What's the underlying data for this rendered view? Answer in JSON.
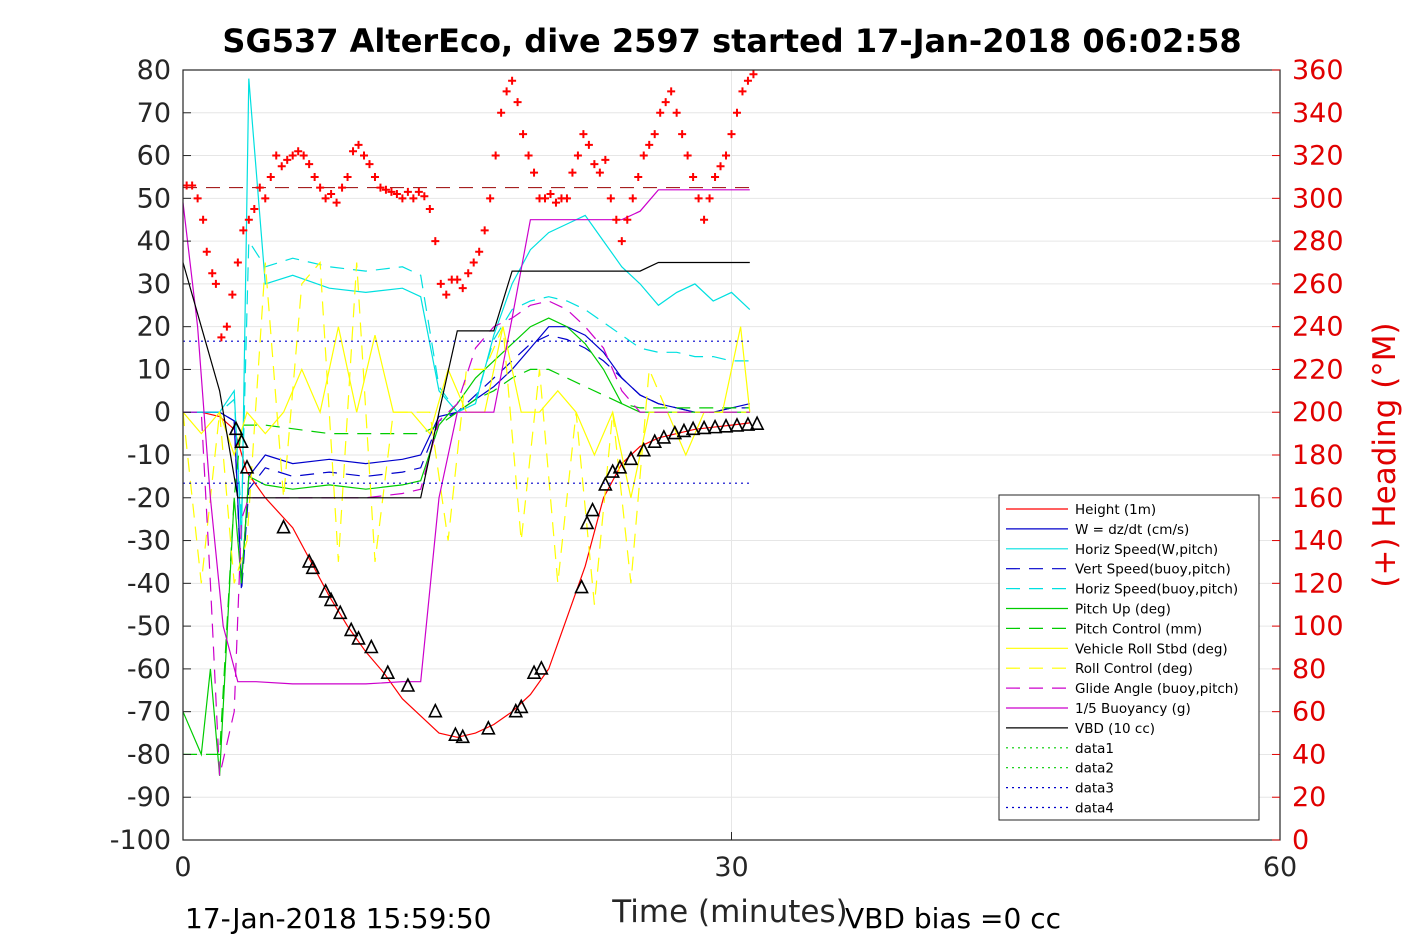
{
  "chart_data": {
    "type": "line",
    "title": "SG537 AlterEco, dive 2597 started 17-Jan-2018 06:02:58",
    "xlabel": "Time (minutes)",
    "ylabel_right": "(+) Heading (°M)",
    "xlim": [
      0,
      60
    ],
    "ylim": [
      -100,
      80
    ],
    "ylim_right": [
      0,
      360
    ],
    "x_ticks": [
      "0",
      "30",
      "60"
    ],
    "y_ticks": [
      "80",
      "70",
      "60",
      "50",
      "40",
      "30",
      "20",
      "10",
      "0",
      "-10",
      "-20",
      "-30",
      "-40",
      "-50",
      "-60",
      "-70",
      "-80",
      "-90",
      "-100"
    ],
    "y_ticks_right": [
      "360",
      "340",
      "320",
      "300",
      "280",
      "260",
      "240",
      "220",
      "200",
      "180",
      "160",
      "140",
      "120",
      "100",
      "80",
      "60",
      "40",
      "20",
      "0"
    ],
    "grid": true,
    "legend_placement": "bottom-right",
    "footer_left": "17-Jan-2018 15:59:50",
    "footer_right": "VBD bias =0 cc",
    "series": [
      {
        "name": "Height (1m)",
        "color": "#ff0000",
        "dash": "",
        "x": [
          0,
          1,
          2,
          2.8,
          3.5,
          4.5,
          6,
          7,
          8,
          9,
          10,
          11,
          12,
          13,
          14,
          15,
          16,
          17,
          18,
          19,
          20,
          21,
          22,
          23,
          24,
          25,
          26,
          27,
          28,
          29,
          30,
          31
        ],
        "y": [
          0,
          0,
          -1,
          -4,
          -14,
          -20,
          -27,
          -35,
          -43,
          -50,
          -56,
          -61,
          -67,
          -71,
          -75,
          -76,
          -75,
          -73,
          -70,
          -66,
          -60,
          -48,
          -36,
          -20,
          -12,
          -8,
          -6,
          -5,
          -4,
          -3.5,
          -3,
          -2.5
        ]
      },
      {
        "name": "W = dz/dt (cm/s)",
        "color": "#0000cc",
        "dash": "",
        "x": [
          0,
          1,
          2,
          2.8,
          3.2,
          3.6,
          4.5,
          6,
          8,
          10,
          12,
          13,
          14,
          15,
          16,
          17,
          18,
          19,
          20,
          21,
          22,
          23,
          24,
          25,
          26,
          27,
          28,
          29,
          30,
          31
        ],
        "y": [
          0,
          0,
          0,
          -2,
          -40,
          -15,
          -10,
          -12,
          -11,
          -12,
          -11,
          -10,
          -1,
          0,
          3,
          6,
          10,
          15,
          20,
          20,
          18,
          14,
          8,
          4,
          2,
          1,
          0,
          0,
          1,
          2
        ]
      },
      {
        "name": "Horiz Speed(W,pitch)",
        "color": "#00e0e0",
        "dash": "",
        "x": [
          0,
          1,
          2,
          2.8,
          3.2,
          3.6,
          4.5,
          6,
          8,
          10,
          12,
          13,
          14,
          15,
          16,
          17,
          18,
          19,
          20,
          21,
          22,
          23,
          24,
          25,
          26,
          27,
          28,
          29,
          30,
          31
        ],
        "y": [
          0,
          0,
          0,
          5,
          -30,
          78,
          30,
          32,
          29,
          28,
          29,
          27,
          5,
          0,
          2,
          18,
          30,
          38,
          42,
          44,
          46,
          40,
          34,
          30,
          25,
          28,
          30,
          26,
          28,
          24
        ]
      },
      {
        "name": "Vert Speed(buoy,pitch)",
        "color": "#0000cc",
        "dash": "14,9",
        "x": [
          0,
          1,
          2,
          2.8,
          3.2,
          3.6,
          4.5,
          6,
          8,
          10,
          12,
          13,
          14,
          15,
          16,
          17,
          18,
          19,
          20,
          21,
          22,
          23,
          24,
          25,
          26,
          27,
          28,
          29,
          30,
          31
        ],
        "y": [
          0,
          0,
          0,
          -2,
          -42,
          -18,
          -13,
          -15,
          -14,
          -15,
          -14,
          -13,
          -2,
          0,
          4,
          8,
          12,
          16,
          18,
          17,
          15,
          12,
          8,
          4,
          2,
          1,
          0,
          0,
          1,
          1
        ]
      },
      {
        "name": "Horiz Speed(buoy,pitch)",
        "color": "#00e0e0",
        "dash": "14,9",
        "x": [
          0,
          1,
          2,
          2.8,
          3.2,
          3.6,
          4.5,
          6,
          8,
          10,
          12,
          13,
          14,
          15,
          16,
          17,
          18,
          19,
          20,
          21,
          22,
          23,
          24,
          25,
          26,
          27,
          28,
          29,
          30,
          31
        ],
        "y": [
          0,
          0,
          0,
          3,
          -25,
          40,
          34,
          36,
          34,
          33,
          34,
          32,
          6,
          0,
          3,
          17,
          24,
          26,
          27,
          26,
          24,
          21,
          18,
          15,
          14,
          14,
          13,
          13,
          12,
          12
        ]
      },
      {
        "name": "Pitch Up (deg)",
        "color": "#00cc00",
        "dash": "",
        "x": [
          0,
          1,
          1.5,
          2,
          2.8,
          3.2,
          3.6,
          4.5,
          6,
          8,
          10,
          12,
          13,
          14,
          15,
          16,
          17,
          18,
          19,
          20,
          21,
          22,
          23,
          24,
          25,
          26,
          27,
          28,
          29,
          30,
          31
        ],
        "y": [
          -70,
          -80,
          -60,
          -85,
          -20,
          -40,
          -15,
          -17,
          -18,
          -17,
          -18,
          -17,
          -16,
          -3,
          2,
          8,
          12,
          16,
          20,
          22,
          20,
          16,
          10,
          2,
          0,
          0,
          0,
          0,
          0,
          0,
          0
        ]
      },
      {
        "name": "Pitch Control (mm)",
        "color": "#00cc00",
        "dash": "14,9",
        "x": [
          0,
          1,
          2,
          2.8,
          3.2,
          4.5,
          8,
          12,
          13,
          14,
          15,
          16,
          17,
          18,
          19,
          20,
          21,
          22,
          23,
          24,
          25,
          26,
          27,
          28,
          29,
          30,
          31
        ],
        "y": [
          -80,
          -80,
          -80,
          -20,
          -3,
          -3,
          -5,
          -5,
          -5,
          -3,
          0,
          3,
          5,
          8,
          10,
          10,
          8,
          6,
          4,
          2,
          1,
          1,
          1,
          1,
          1,
          1,
          1
        ]
      },
      {
        "name": "Vehicle Roll Stbd (deg)",
        "color": "#ffff00",
        "dash": "",
        "x": [
          0,
          1,
          2,
          2.8,
          3.5,
          4.5,
          5.5,
          6.5,
          7.5,
          8.5,
          9.5,
          10.5,
          11.5,
          12.5,
          13.5,
          14.5,
          15.5,
          16.5,
          17.5,
          18.5,
          19.5,
          20.5,
          21.5,
          22.5,
          23.5,
          24.5,
          25.5,
          26.5,
          27.5,
          28.5,
          29.5,
          30.5,
          31
        ],
        "y": [
          0,
          -5,
          0,
          -10,
          0,
          -5,
          0,
          10,
          0,
          20,
          0,
          18,
          0,
          0,
          -5,
          10,
          0,
          0,
          20,
          0,
          0,
          5,
          0,
          -10,
          0,
          -20,
          0,
          0,
          -10,
          0,
          0,
          20,
          0
        ]
      },
      {
        "name": "Roll Control (deg)",
        "color": "#ffff00",
        "dash": "14,9",
        "x": [
          0,
          1,
          2,
          2.8,
          3.5,
          4.5,
          5.5,
          6.5,
          7.5,
          8.5,
          9.5,
          10.5,
          11.5,
          12.5,
          13.5,
          14.5,
          15.5,
          16.5,
          17.5,
          18.5,
          19.5,
          20.5,
          21.5,
          22.5,
          23.5,
          24.5,
          25.5,
          26.5,
          27.5,
          28.5,
          29.5,
          30.5,
          31
        ],
        "y": [
          0,
          -40,
          0,
          -40,
          -30,
          35,
          -20,
          30,
          35,
          -35,
          35,
          -35,
          0,
          0,
          0,
          -30,
          10,
          10,
          20,
          -30,
          10,
          -40,
          0,
          -45,
          0,
          -40,
          10,
          0,
          0,
          0,
          0,
          0,
          0
        ]
      },
      {
        "name": "Glide Angle (buoy,pitch)",
        "color": "#cc00cc",
        "dash": "14,9",
        "x": [
          0,
          1,
          1.5,
          2,
          2.8,
          3.2,
          3.6,
          4.5,
          6,
          8,
          10,
          12,
          13,
          14,
          15,
          16,
          17,
          18,
          19,
          20,
          21,
          22,
          23,
          24,
          25,
          26,
          27,
          28,
          29,
          30,
          31
        ],
        "y": [
          0,
          0,
          -40,
          -85,
          -70,
          -25,
          -20,
          -20,
          -20,
          -20,
          -20,
          -19,
          -18,
          -2,
          2,
          15,
          20,
          22,
          25,
          26,
          24,
          20,
          15,
          5,
          0,
          0,
          0,
          0,
          0,
          0,
          0
        ]
      },
      {
        "name": "1/5 Buoyancy (g)",
        "color": "#cc00cc",
        "dash": "",
        "x": [
          0,
          0.8,
          1.5,
          2.2,
          3,
          4,
          6,
          8,
          10,
          12,
          13,
          14,
          15,
          16,
          17,
          18,
          19,
          20,
          21,
          22,
          23,
          24,
          25,
          26,
          27,
          28,
          29,
          30,
          31
        ],
        "y": [
          49,
          20,
          -20,
          -50,
          -63,
          -63,
          -63.5,
          -63.5,
          -63.5,
          -63,
          -63,
          -20,
          0,
          0,
          0,
          22,
          45,
          45,
          45,
          45,
          45,
          45,
          47,
          52,
          52,
          52,
          52,
          52,
          52
        ]
      },
      {
        "name": "VBD (10 cc)",
        "color": "#000000",
        "dash": "",
        "x": [
          0,
          1,
          2,
          3,
          4,
          6,
          8,
          10,
          12,
          13,
          14,
          15,
          16,
          17,
          18,
          19,
          20,
          21,
          22,
          23,
          24,
          25,
          26,
          27,
          28,
          29,
          30,
          31
        ],
        "y": [
          35,
          20,
          5,
          -20,
          -20,
          -20,
          -20,
          -20,
          -20,
          -20,
          0,
          19,
          19,
          19,
          33,
          33,
          33,
          33,
          33,
          33,
          33,
          33,
          35,
          35,
          35,
          35,
          35,
          35
        ]
      },
      {
        "name": "data1",
        "color": "#00cc00",
        "dash": "2,4",
        "x": [
          0,
          0
        ],
        "y": [
          0,
          0
        ]
      },
      {
        "name": "data2",
        "color": "#00cc00",
        "dash": "2,4",
        "x": [
          0,
          0
        ],
        "y": [
          0,
          0
        ]
      },
      {
        "name": "data3",
        "color": "#0000cc",
        "dash": "2,4",
        "x": [
          0,
          31
        ],
        "y": [
          16.6,
          16.6
        ]
      },
      {
        "name": "data4",
        "color": "#0000cc",
        "dash": "2,4",
        "x": [
          0,
          31
        ],
        "y": [
          -16.6,
          -16.6
        ]
      }
    ],
    "ref_heading": {
      "color": "#990000",
      "dash": "14,9",
      "value": 305,
      "x": [
        0,
        31
      ]
    },
    "heading_points": {
      "color": "#ff0000",
      "x": [
        0.2,
        0.5,
        0.8,
        1.1,
        1.3,
        1.6,
        1.8,
        2.1,
        2.4,
        2.7,
        3,
        3.3,
        3.6,
        3.9,
        4.2,
        4.5,
        4.8,
        5.1,
        5.4,
        5.7,
        6,
        6.3,
        6.6,
        6.9,
        7.2,
        7.5,
        7.8,
        8.1,
        8.4,
        8.7,
        9,
        9.3,
        9.6,
        9.9,
        10.2,
        10.5,
        10.8,
        11.1,
        11.4,
        11.7,
        12,
        12.3,
        12.6,
        12.9,
        13.2,
        13.5,
        13.8,
        14.1,
        14.4,
        14.7,
        15,
        15.3,
        15.6,
        15.9,
        16.2,
        16.5,
        16.8,
        17.1,
        17.4,
        17.7,
        18,
        18.3,
        18.6,
        18.9,
        19.2,
        19.5,
        19.8,
        20.1,
        20.4,
        20.7,
        21,
        21.3,
        21.6,
        21.9,
        22.2,
        22.5,
        22.8,
        23.1,
        23.4,
        23.7,
        24,
        24.3,
        24.6,
        24.9,
        25.2,
        25.5,
        25.8,
        26.1,
        26.4,
        26.7,
        27,
        27.3,
        27.6,
        27.9,
        28.2,
        28.5,
        28.8,
        29.1,
        29.4,
        29.7,
        30,
        30.3,
        30.6,
        30.9,
        31.2
      ],
      "y": [
        306,
        306,
        300,
        290,
        275,
        265,
        260,
        235,
        240,
        255,
        270,
        285,
        290,
        295,
        305,
        300,
        310,
        320,
        315,
        318,
        320,
        322,
        320,
        316,
        310,
        305,
        300,
        302,
        298,
        305,
        310,
        322,
        325,
        320,
        316,
        310,
        305,
        304,
        303,
        302,
        300,
        303,
        300,
        303,
        301,
        295,
        280,
        260,
        255,
        262,
        262,
        258,
        265,
        270,
        275,
        285,
        300,
        320,
        340,
        350,
        355,
        345,
        330,
        320,
        312,
        300,
        300,
        302,
        298,
        300,
        300,
        312,
        320,
        330,
        325,
        316,
        312,
        318,
        300,
        290,
        280,
        290,
        300,
        310,
        320,
        325,
        330,
        340,
        345,
        350,
        340,
        330,
        320,
        310,
        300,
        290,
        300,
        310,
        315,
        320,
        330,
        340,
        350,
        355,
        358
      ]
    },
    "depth_markers": {
      "color": "#000000",
      "x": [
        2.9,
        3.2,
        3.5,
        5.5,
        6.9,
        7.1,
        7.8,
        8.1,
        8.6,
        9.2,
        9.6,
        10.3,
        11.2,
        12.3,
        13.8,
        14.9,
        15.3,
        16.7,
        18.2,
        18.5,
        19.2,
        19.6,
        21.8,
        22.1,
        22.4,
        23.1,
        23.5,
        23.9,
        24.5,
        25.2,
        25.8,
        26.3,
        26.9,
        27.4,
        27.9,
        28.5,
        29.1,
        29.7,
        30.3,
        30.9,
        31.4
      ],
      "y": [
        -4,
        -7,
        -13,
        -27,
        -35,
        -36.5,
        -42,
        -44,
        -47,
        -51,
        -53,
        -55,
        -61,
        -64,
        -70,
        -75.5,
        -76,
        -74,
        -70,
        -69,
        -61,
        -60,
        -41,
        -26,
        -23,
        -17,
        -14,
        -13,
        -11,
        -9,
        -7,
        -6,
        -5,
        -4.5,
        -4,
        -3.8,
        -3.6,
        -3.4,
        -3.2,
        -3,
        -2.8
      ]
    }
  }
}
